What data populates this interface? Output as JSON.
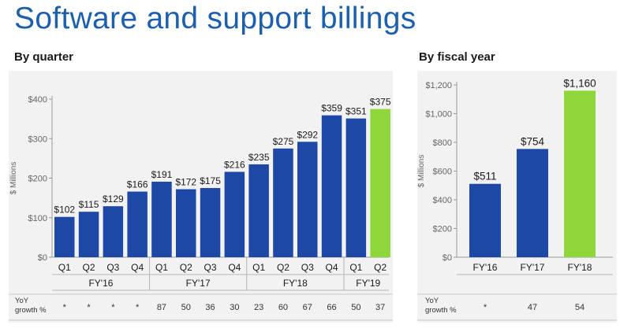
{
  "title": "Software and support billings",
  "chart_data": [
    {
      "type": "bar",
      "title": "By quarter",
      "ylabel": "$ Millions",
      "ylim": [
        0,
        400
      ],
      "yticks": [
        "$0",
        "$100",
        "$200",
        "$300",
        "$400"
      ],
      "ytick_values": [
        0,
        100,
        200,
        300,
        400
      ],
      "categories": [
        "Q1",
        "Q2",
        "Q3",
        "Q4",
        "Q1",
        "Q2",
        "Q3",
        "Q4",
        "Q1",
        "Q2",
        "Q3",
        "Q4",
        "Q1",
        "Q2"
      ],
      "groups": [
        {
          "label": "FY'16",
          "count": 4
        },
        {
          "label": "FY'17",
          "count": 4
        },
        {
          "label": "FY'18",
          "count": 4
        },
        {
          "label": "FY'19",
          "count": 2
        }
      ],
      "values": [
        102,
        115,
        129,
        166,
        191,
        172,
        175,
        216,
        235,
        275,
        292,
        359,
        351,
        375
      ],
      "value_labels": [
        "$102",
        "$115",
        "$129",
        "$166",
        "$191",
        "$172",
        "$175",
        "$216",
        "$235",
        "$275",
        "$292",
        "$359",
        "$351",
        "$375"
      ],
      "highlight_index": 13,
      "growth_row_label": [
        "YoY",
        "growth %"
      ],
      "growth": [
        "*",
        "*",
        "*",
        "*",
        "87",
        "50",
        "36",
        "30",
        "23",
        "60",
        "67",
        "66",
        "50",
        "37"
      ],
      "grid": false
    },
    {
      "type": "bar",
      "title": "By fiscal year",
      "ylabel": "$ Millions",
      "ylim": [
        0,
        1200
      ],
      "yticks": [
        "$0",
        "$200",
        "$400",
        "$600",
        "$800",
        "$1,000",
        "$1,200"
      ],
      "ytick_values": [
        0,
        200,
        400,
        600,
        800,
        1000,
        1200
      ],
      "categories": [
        "FY'16",
        "FY'17",
        "FY'18"
      ],
      "values": [
        511,
        754,
        1160
      ],
      "value_labels": [
        "$511",
        "$754",
        "$1,160"
      ],
      "highlight_index": 2,
      "growth_row_label": [
        "YoY",
        "growth %"
      ],
      "growth": [
        "*",
        "47",
        "54"
      ],
      "grid": false
    }
  ],
  "colors": {
    "title": "#1b5fae",
    "bar": "#1e48a6",
    "highlight": "#8fd63a",
    "panel": "#f2f2f2",
    "axis": "#9a9a9a"
  }
}
